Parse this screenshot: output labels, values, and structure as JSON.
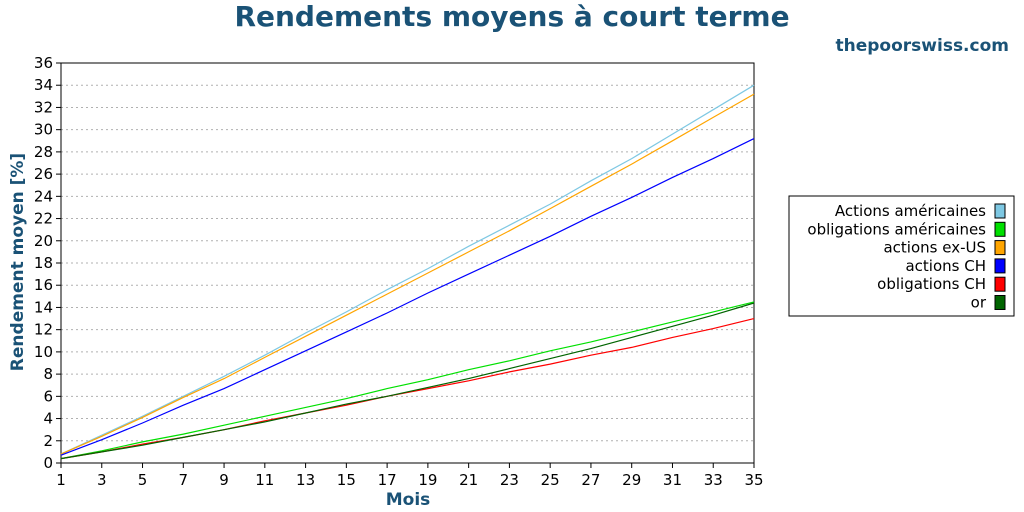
{
  "header": {
    "title": "Rendements moyens à court terme",
    "brand": "thepoorswiss.com"
  },
  "chart_data": {
    "type": "line",
    "xlabel": "Mois",
    "ylabel": "Rendement moyen [%]",
    "xlim": [
      1,
      35
    ],
    "ylim": [
      0,
      36
    ],
    "x_ticks": [
      1,
      3,
      5,
      7,
      9,
      11,
      13,
      15,
      17,
      19,
      21,
      23,
      25,
      27,
      29,
      31,
      33,
      35
    ],
    "y_ticks": [
      0,
      2,
      4,
      6,
      8,
      10,
      12,
      14,
      16,
      18,
      20,
      22,
      24,
      26,
      28,
      30,
      32,
      34,
      36
    ],
    "grid": "horizontal-dotted",
    "legend_position": "right",
    "x": [
      1,
      3,
      5,
      7,
      9,
      11,
      13,
      15,
      17,
      19,
      21,
      23,
      25,
      27,
      29,
      31,
      33,
      35
    ],
    "series": [
      {
        "name": "Actions américaines",
        "color": "#7ec8e3",
        "values": [
          0.8,
          2.5,
          4.2,
          6.0,
          7.8,
          9.7,
          11.7,
          13.6,
          15.6,
          17.5,
          19.5,
          21.4,
          23.3,
          25.4,
          27.4,
          29.6,
          31.8,
          34.0
        ]
      },
      {
        "name": "obligations américaines",
        "color": "#00e000",
        "values": [
          0.4,
          1.1,
          1.9,
          2.6,
          3.4,
          4.2,
          5.0,
          5.8,
          6.7,
          7.5,
          8.4,
          9.2,
          10.1,
          10.9,
          11.8,
          12.7,
          13.6,
          14.5
        ]
      },
      {
        "name": "actions ex-US",
        "color": "#ffa500",
        "values": [
          0.8,
          2.4,
          4.1,
          5.9,
          7.6,
          9.5,
          11.4,
          13.3,
          15.2,
          17.1,
          19.0,
          20.9,
          22.9,
          24.9,
          26.9,
          29.0,
          31.1,
          33.2
        ]
      },
      {
        "name": "actions CH",
        "color": "#0000ff",
        "values": [
          0.7,
          2.1,
          3.6,
          5.2,
          6.7,
          8.4,
          10.1,
          11.8,
          13.5,
          15.3,
          17.0,
          18.7,
          20.4,
          22.2,
          23.9,
          25.7,
          27.4,
          29.2
        ]
      },
      {
        "name": "obligations CH",
        "color": "#ff0000",
        "values": [
          0.4,
          1.0,
          1.7,
          2.3,
          3.0,
          3.8,
          4.5,
          5.2,
          6.0,
          6.7,
          7.4,
          8.2,
          8.9,
          9.7,
          10.4,
          11.3,
          12.1,
          13.0
        ]
      },
      {
        "name": "or",
        "color": "#006400",
        "values": [
          0.4,
          1.0,
          1.6,
          2.3,
          3.0,
          3.7,
          4.5,
          5.3,
          6.0,
          6.8,
          7.6,
          8.5,
          9.4,
          10.3,
          11.3,
          12.3,
          13.3,
          14.4
        ]
      }
    ]
  }
}
